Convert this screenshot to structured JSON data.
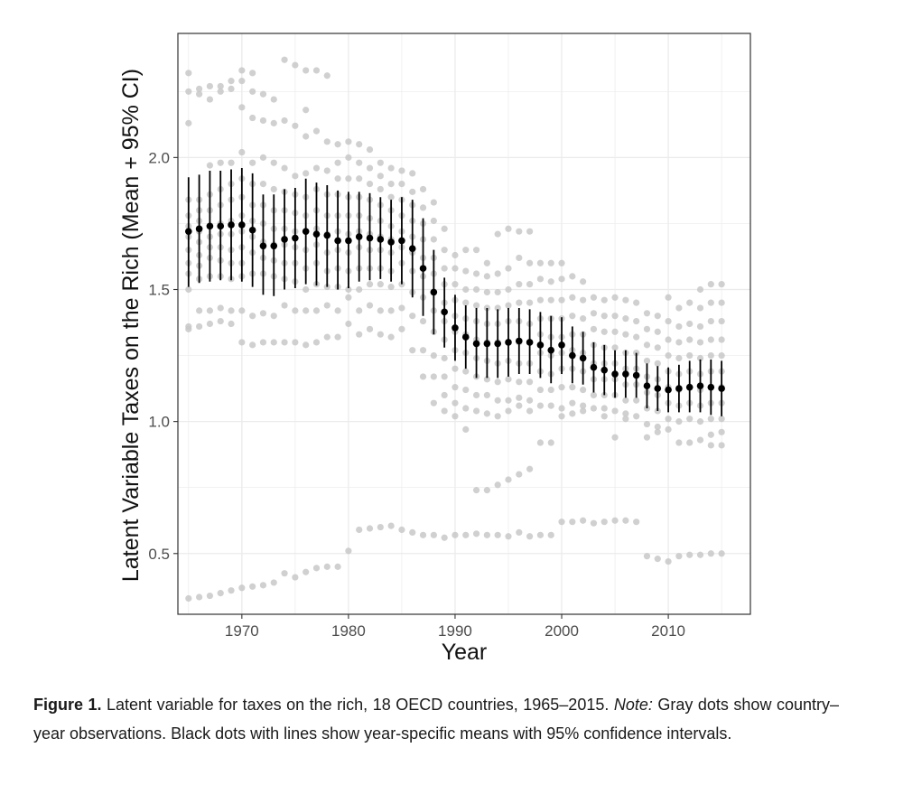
{
  "chart_data": {
    "type": "scatter",
    "title": "",
    "xlabel": "Year",
    "ylabel": "Latent Variable Taxes on the Rich (Mean + 95% CI)",
    "xlim": [
      1964,
      2017.7
    ],
    "ylim": [
      0.27,
      2.47
    ],
    "xticks": [
      1970,
      1980,
      1990,
      2000,
      2010
    ],
    "yticks": [
      0.5,
      1.0,
      1.5,
      2.0
    ],
    "xtick_labels": [
      "1970",
      "1980",
      "1990",
      "2000",
      "2010"
    ],
    "ytick_labels": [
      "0.5",
      "1.0",
      "1.5",
      "2.0"
    ],
    "grid": true,
    "colors": {
      "observation": "#c8c8c8",
      "mean": "#000000",
      "grid": "#ebebeb",
      "panel_border": "#333333"
    },
    "means": {
      "x": [
        1965,
        1966,
        1967,
        1968,
        1969,
        1970,
        1971,
        1972,
        1973,
        1974,
        1975,
        1976,
        1977,
        1978,
        1979,
        1980,
        1981,
        1982,
        1983,
        1984,
        1985,
        1986,
        1987,
        1988,
        1989,
        1990,
        1991,
        1992,
        1993,
        1994,
        1995,
        1996,
        1997,
        1998,
        1999,
        2000,
        2001,
        2002,
        2003,
        2004,
        2005,
        2006,
        2007,
        2008,
        2009,
        2010,
        2011,
        2012,
        2013,
        2014,
        2015
      ],
      "mean": [
        1.72,
        1.73,
        1.74,
        1.74,
        1.745,
        1.745,
        1.725,
        1.665,
        1.665,
        1.69,
        1.695,
        1.72,
        1.71,
        1.705,
        1.685,
        1.685,
        1.7,
        1.695,
        1.69,
        1.68,
        1.685,
        1.655,
        1.58,
        1.49,
        1.415,
        1.355,
        1.32,
        1.295,
        1.295,
        1.295,
        1.3,
        1.305,
        1.3,
        1.29,
        1.27,
        1.29,
        1.25,
        1.24,
        1.205,
        1.195,
        1.18,
        1.18,
        1.175,
        1.135,
        1.125,
        1.12,
        1.125,
        1.13,
        1.135,
        1.13,
        1.125
      ],
      "lower": [
        1.51,
        1.525,
        1.53,
        1.535,
        1.535,
        1.53,
        1.51,
        1.48,
        1.475,
        1.5,
        1.505,
        1.52,
        1.515,
        1.51,
        1.5,
        1.505,
        1.53,
        1.535,
        1.54,
        1.53,
        1.52,
        1.47,
        1.4,
        1.33,
        1.28,
        1.23,
        1.2,
        1.165,
        1.165,
        1.165,
        1.17,
        1.18,
        1.18,
        1.165,
        1.145,
        1.18,
        1.145,
        1.14,
        1.11,
        1.1,
        1.09,
        1.09,
        1.09,
        1.05,
        1.04,
        1.035,
        1.035,
        1.035,
        1.035,
        1.025,
        1.02
      ],
      "upper": [
        1.925,
        1.935,
        1.95,
        1.95,
        1.955,
        1.96,
        1.94,
        1.86,
        1.86,
        1.88,
        1.885,
        1.92,
        1.905,
        1.895,
        1.875,
        1.87,
        1.87,
        1.865,
        1.85,
        1.84,
        1.85,
        1.84,
        1.77,
        1.65,
        1.545,
        1.48,
        1.44,
        1.43,
        1.43,
        1.425,
        1.43,
        1.43,
        1.425,
        1.415,
        1.4,
        1.395,
        1.36,
        1.34,
        1.3,
        1.29,
        1.27,
        1.27,
        1.26,
        1.22,
        1.21,
        1.205,
        1.215,
        1.23,
        1.235,
        1.235,
        1.23
      ]
    },
    "observations": [
      {
        "year": 1965,
        "values": [
          2.32,
          2.25,
          2.13,
          1.84,
          1.78,
          1.74,
          1.7,
          1.65,
          1.6,
          1.56,
          1.5,
          1.36,
          1.35,
          0.33
        ]
      },
      {
        "year": 1966,
        "values": [
          2.26,
          2.24,
          1.84,
          1.8,
          1.76,
          1.72,
          1.68,
          1.63,
          1.59,
          1.54,
          1.42,
          1.36,
          0.335
        ]
      },
      {
        "year": 1967,
        "values": [
          2.27,
          2.22,
          1.97,
          1.86,
          1.8,
          1.74,
          1.7,
          1.66,
          1.62,
          1.55,
          1.42,
          1.37,
          0.34
        ]
      },
      {
        "year": 1968,
        "values": [
          2.27,
          2.25,
          1.98,
          1.88,
          1.82,
          1.75,
          1.71,
          1.66,
          1.61,
          1.55,
          1.43,
          1.38,
          0.35
        ]
      },
      {
        "year": 1969,
        "values": [
          2.29,
          2.26,
          1.98,
          1.9,
          1.84,
          1.76,
          1.71,
          1.65,
          1.6,
          1.54,
          1.42,
          1.37,
          0.36
        ]
      },
      {
        "year": 1970,
        "values": [
          2.33,
          2.29,
          2.19,
          2.02,
          1.92,
          1.85,
          1.78,
          1.72,
          1.66,
          1.6,
          1.55,
          1.42,
          1.3,
          0.37
        ]
      },
      {
        "year": 1971,
        "values": [
          2.32,
          2.25,
          2.15,
          1.98,
          1.9,
          1.82,
          1.76,
          1.7,
          1.64,
          1.56,
          1.4,
          1.29,
          0.375
        ]
      },
      {
        "year": 1972,
        "values": [
          2.24,
          2.14,
          2.0,
          1.9,
          1.82,
          1.75,
          1.68,
          1.62,
          1.56,
          1.41,
          1.3,
          0.38
        ]
      },
      {
        "year": 1973,
        "values": [
          2.22,
          2.13,
          1.98,
          1.88,
          1.8,
          1.73,
          1.67,
          1.61,
          1.55,
          1.4,
          1.3,
          0.39
        ]
      },
      {
        "year": 1974,
        "values": [
          2.37,
          2.14,
          1.96,
          1.87,
          1.8,
          1.73,
          1.67,
          1.6,
          1.54,
          1.44,
          1.3,
          0.425
        ]
      },
      {
        "year": 1975,
        "values": [
          2.35,
          2.12,
          1.93,
          1.86,
          1.79,
          1.72,
          1.66,
          1.6,
          1.53,
          1.42,
          1.3,
          0.41
        ]
      },
      {
        "year": 1976,
        "values": [
          2.33,
          2.18,
          2.08,
          1.94,
          1.85,
          1.78,
          1.72,
          1.65,
          1.58,
          1.5,
          1.42,
          1.29,
          0.43
        ]
      },
      {
        "year": 1977,
        "values": [
          2.33,
          2.1,
          1.96,
          1.88,
          1.8,
          1.73,
          1.67,
          1.6,
          1.52,
          1.42,
          1.3,
          0.445
        ]
      },
      {
        "year": 1978,
        "values": [
          2.31,
          2.06,
          1.95,
          1.86,
          1.78,
          1.71,
          1.64,
          1.57,
          1.51,
          1.44,
          1.32,
          0.45
        ]
      },
      {
        "year": 1979,
        "values": [
          2.05,
          1.98,
          1.92,
          1.86,
          1.78,
          1.72,
          1.65,
          1.58,
          1.51,
          1.42,
          1.32,
          0.45
        ]
      },
      {
        "year": 1980,
        "values": [
          2.06,
          2.0,
          1.92,
          1.85,
          1.78,
          1.71,
          1.64,
          1.57,
          1.5,
          1.47,
          1.37,
          0.51
        ]
      },
      {
        "year": 1981,
        "values": [
          2.05,
          1.98,
          1.92,
          1.85,
          1.78,
          1.72,
          1.66,
          1.58,
          1.5,
          1.42,
          1.33,
          0.59
        ]
      },
      {
        "year": 1982,
        "values": [
          2.03,
          1.96,
          1.9,
          1.84,
          1.77,
          1.71,
          1.65,
          1.58,
          1.52,
          1.44,
          1.35,
          0.595
        ]
      },
      {
        "year": 1983,
        "values": [
          1.98,
          1.93,
          1.88,
          1.82,
          1.76,
          1.7,
          1.65,
          1.58,
          1.52,
          1.42,
          1.33,
          0.6
        ]
      },
      {
        "year": 1984,
        "values": [
          1.96,
          1.9,
          1.85,
          1.8,
          1.74,
          1.69,
          1.64,
          1.57,
          1.51,
          1.42,
          1.32,
          0.605
        ]
      },
      {
        "year": 1985,
        "values": [
          1.95,
          1.9,
          1.84,
          1.78,
          1.72,
          1.66,
          1.6,
          1.52,
          1.43,
          1.35,
          0.59
        ]
      },
      {
        "year": 1986,
        "values": [
          1.94,
          1.87,
          1.82,
          1.76,
          1.7,
          1.64,
          1.57,
          1.49,
          1.4,
          1.27,
          0.58
        ]
      },
      {
        "year": 1987,
        "values": [
          1.88,
          1.81,
          1.75,
          1.69,
          1.62,
          1.55,
          1.47,
          1.38,
          1.27,
          1.17,
          0.57
        ]
      },
      {
        "year": 1988,
        "values": [
          1.83,
          1.76,
          1.69,
          1.62,
          1.56,
          1.49,
          1.42,
          1.34,
          1.25,
          1.17,
          1.07,
          0.57
        ]
      },
      {
        "year": 1989,
        "values": [
          1.73,
          1.65,
          1.58,
          1.52,
          1.45,
          1.38,
          1.31,
          1.24,
          1.17,
          1.1,
          1.04,
          0.56
        ]
      },
      {
        "year": 1990,
        "values": [
          1.63,
          1.58,
          1.52,
          1.46,
          1.4,
          1.34,
          1.27,
          1.2,
          1.13,
          1.07,
          1.02,
          0.57
        ]
      },
      {
        "year": 1991,
        "values": [
          1.65,
          1.57,
          1.5,
          1.45,
          1.39,
          1.33,
          1.26,
          1.19,
          1.12,
          1.05,
          0.97,
          0.57
        ]
      },
      {
        "year": 1992,
        "values": [
          1.65,
          1.56,
          1.5,
          1.44,
          1.38,
          1.31,
          1.24,
          1.17,
          1.1,
          1.04,
          0.74,
          0.575
        ]
      },
      {
        "year": 1993,
        "values": [
          1.6,
          1.55,
          1.49,
          1.43,
          1.37,
          1.3,
          1.23,
          1.16,
          1.1,
          1.03,
          0.74,
          0.57
        ]
      },
      {
        "year": 1994,
        "values": [
          1.71,
          1.56,
          1.49,
          1.43,
          1.37,
          1.3,
          1.22,
          1.15,
          1.08,
          1.02,
          0.76,
          0.57
        ]
      },
      {
        "year": 1995,
        "values": [
          1.73,
          1.58,
          1.5,
          1.44,
          1.38,
          1.3,
          1.23,
          1.16,
          1.08,
          1.04,
          0.78,
          0.565
        ]
      },
      {
        "year": 1996,
        "values": [
          1.72,
          1.62,
          1.52,
          1.45,
          1.38,
          1.3,
          1.22,
          1.15,
          1.09,
          1.06,
          0.8,
          0.58
        ]
      },
      {
        "year": 1997,
        "values": [
          1.72,
          1.6,
          1.52,
          1.45,
          1.37,
          1.3,
          1.22,
          1.15,
          1.08,
          1.04,
          0.82,
          0.565
        ]
      },
      {
        "year": 1998,
        "values": [
          1.6,
          1.54,
          1.46,
          1.39,
          1.33,
          1.26,
          1.19,
          1.12,
          1.06,
          0.92,
          0.57
        ]
      },
      {
        "year": 1999,
        "values": [
          1.6,
          1.53,
          1.46,
          1.39,
          1.32,
          1.25,
          1.18,
          1.12,
          1.06,
          0.92,
          0.57
        ]
      },
      {
        "year": 2000,
        "values": [
          1.6,
          1.54,
          1.46,
          1.39,
          1.32,
          1.26,
          1.2,
          1.13,
          1.05,
          1.02,
          0.62
        ]
      },
      {
        "year": 2001,
        "values": [
          1.55,
          1.47,
          1.4,
          1.33,
          1.27,
          1.2,
          1.13,
          1.07,
          1.03,
          0.62
        ]
      },
      {
        "year": 2002,
        "values": [
          1.53,
          1.46,
          1.39,
          1.33,
          1.26,
          1.19,
          1.12,
          1.06,
          1.04,
          0.625
        ]
      },
      {
        "year": 2003,
        "values": [
          1.47,
          1.41,
          1.35,
          1.29,
          1.22,
          1.16,
          1.1,
          1.05,
          0.615
        ]
      },
      {
        "year": 2004,
        "values": [
          1.46,
          1.4,
          1.34,
          1.28,
          1.22,
          1.16,
          1.1,
          1.05,
          1.02,
          0.62
        ]
      },
      {
        "year": 2005,
        "values": [
          1.47,
          1.4,
          1.34,
          1.28,
          1.22,
          1.16,
          1.1,
          1.04,
          0.94,
          0.625
        ]
      },
      {
        "year": 2006,
        "values": [
          1.46,
          1.39,
          1.33,
          1.26,
          1.2,
          1.14,
          1.08,
          1.03,
          1.01,
          0.625
        ]
      },
      {
        "year": 2007,
        "values": [
          1.45,
          1.38,
          1.32,
          1.26,
          1.2,
          1.14,
          1.08,
          1.02,
          0.62
        ]
      },
      {
        "year": 2008,
        "values": [
          1.41,
          1.35,
          1.29,
          1.23,
          1.17,
          1.11,
          1.05,
          0.99,
          0.94,
          0.49
        ]
      },
      {
        "year": 2009,
        "values": [
          1.4,
          1.34,
          1.28,
          1.22,
          1.16,
          1.1,
          1.04,
          0.98,
          0.96,
          0.48
        ]
      },
      {
        "year": 2010,
        "values": [
          1.47,
          1.38,
          1.31,
          1.25,
          1.19,
          1.13,
          1.07,
          1.01,
          0.97,
          0.47
        ]
      },
      {
        "year": 2011,
        "values": [
          1.43,
          1.36,
          1.3,
          1.24,
          1.18,
          1.12,
          1.06,
          1.0,
          0.92,
          0.49
        ]
      },
      {
        "year": 2012,
        "values": [
          1.45,
          1.37,
          1.31,
          1.25,
          1.19,
          1.13,
          1.07,
          1.01,
          0.92,
          0.495
        ]
      },
      {
        "year": 2013,
        "values": [
          1.5,
          1.43,
          1.36,
          1.3,
          1.24,
          1.18,
          1.12,
          1.06,
          1.0,
          0.93,
          0.495
        ]
      },
      {
        "year": 2014,
        "values": [
          1.52,
          1.45,
          1.38,
          1.31,
          1.25,
          1.19,
          1.13,
          1.07,
          1.01,
          0.95,
          0.91,
          0.5
        ]
      },
      {
        "year": 2015,
        "values": [
          1.52,
          1.45,
          1.38,
          1.31,
          1.25,
          1.19,
          1.13,
          1.07,
          1.01,
          0.96,
          0.91,
          0.5
        ]
      }
    ]
  },
  "caption": {
    "figure_label": "Figure 1.",
    "text": " Latent variable for taxes on the rich, 18 OECD countries, 1965–2015. ",
    "note_label": "Note:",
    "note_text": " Gray dots show country–year observations. Black dots with lines show year-specific means with 95% confidence intervals."
  }
}
